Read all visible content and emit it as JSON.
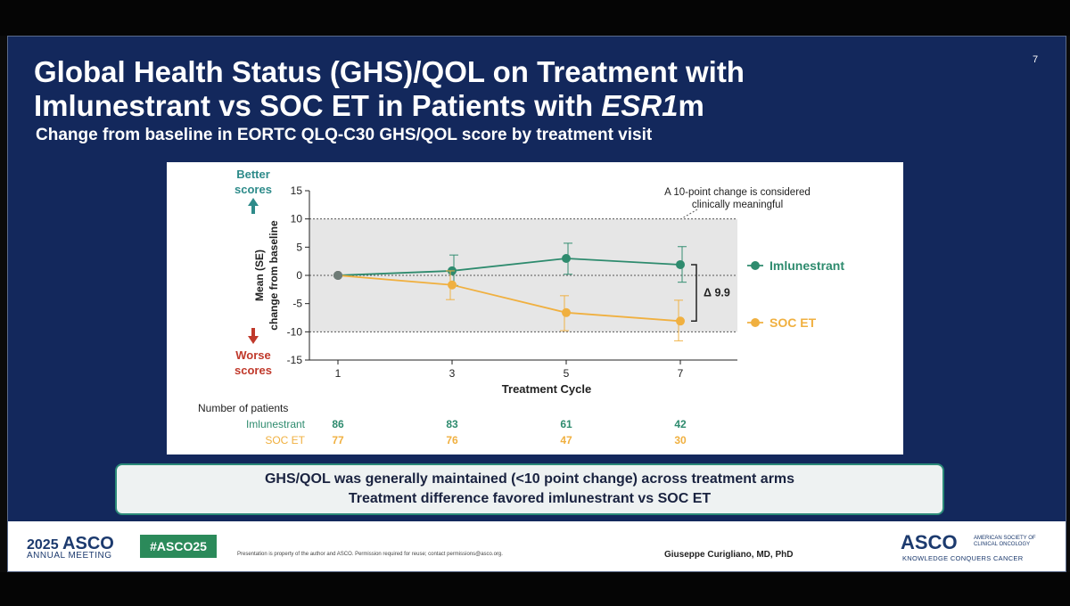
{
  "slide": {
    "title_line1": "Global Health Status (GHS)/QOL on Treatment with",
    "title_line2_prefix": "Imlunestrant vs SOC ET in Patients with ",
    "title_line2_italic": "ESR1",
    "title_line2_suffix": "m",
    "subtitle": "Change from baseline in EORTC QLQ-C30 GHS/QOL score by treatment visit",
    "slide_number": "7"
  },
  "chart_data": {
    "type": "line",
    "xlabel": "Treatment Cycle",
    "ylabel_line1": "Mean (SE)",
    "ylabel_line2": "change from baseline",
    "x": [
      1,
      3,
      5,
      7
    ],
    "x_ticks": [
      "1",
      "3",
      "5",
      "7"
    ],
    "xlim": [
      0.5,
      8
    ],
    "ylim": [
      -15,
      15
    ],
    "y_ticks": [
      "15",
      "10",
      "5",
      "0",
      "-5",
      "-10",
      "-15"
    ],
    "shaded_band": [
      -10,
      10
    ],
    "reference_lines": [
      10,
      0,
      -10
    ],
    "series": [
      {
        "name": "Imlunestrant",
        "color": "#2e8b6e",
        "values": [
          0,
          0.8,
          3.0,
          1.9
        ],
        "err_up": [
          0,
          2.8,
          2.7,
          3.2
        ],
        "err_down": [
          0,
          2.6,
          2.8,
          3.1
        ]
      },
      {
        "name": "SOC ET",
        "color": "#f0b040",
        "values": [
          0,
          -1.7,
          -6.6,
          -8.1
        ],
        "err_up": [
          0,
          2.5,
          3.0,
          3.7
        ],
        "err_down": [
          0,
          2.6,
          3.2,
          3.5
        ]
      }
    ],
    "better_label_line1": "Better",
    "better_label_line2": "scores",
    "worse_label_line1": "Worse",
    "worse_label_line2": "scores",
    "annotation_line1": "A 10-point change is considered",
    "annotation_line2": "clinically meaningful",
    "delta_label": "Δ 9.9",
    "patients_header": "Number of patients",
    "patients": [
      {
        "name": "Imlunestrant",
        "counts": [
          "86",
          "83",
          "61",
          "42"
        ]
      },
      {
        "name": "SOC ET",
        "counts": [
          "77",
          "76",
          "47",
          "30"
        ]
      }
    ]
  },
  "summary": {
    "line1": "GHS/QOL was generally maintained (<10 point change) across treatment arms",
    "line2": "Treatment difference favored imlunestrant vs SOC ET"
  },
  "footer": {
    "year": "2025",
    "asco": "ASCO",
    "meeting": "ANNUAL MEETING",
    "hashtag": "#ASCO25",
    "disclaimer": "Presentation is property of the author and ASCO. Permission required for reuse; contact permissions@asco.org.",
    "presenter": "Giuseppe Curigliano, MD, PhD",
    "asco_right": "ASCO",
    "asco_right_sub": "AMERICAN SOCIETY OF CLINICAL ONCOLOGY",
    "tagline": "KNOWLEDGE CONQUERS CANCER"
  },
  "colors": {
    "slide_bg": "#13285c",
    "imlunestrant": "#2e8b6e",
    "soc_et": "#f0b040",
    "better": "#2e8b8a",
    "worse": "#c0392b",
    "summary_border": "#2b8a78"
  }
}
